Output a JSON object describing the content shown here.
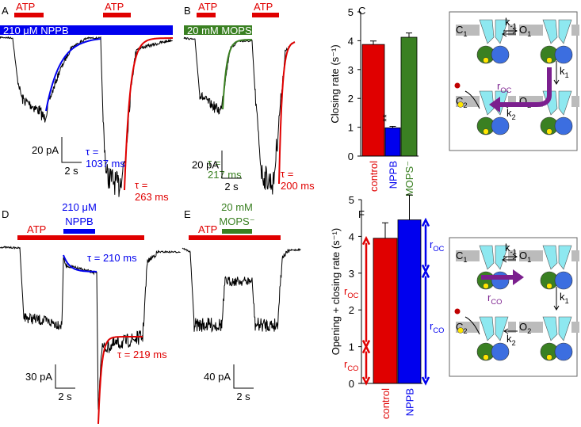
{
  "panel_labels": [
    "A",
    "B",
    "C",
    "D",
    "E",
    "F"
  ],
  "trace_panels": [
    {
      "solutions": [
        {
          "label": "ATP",
          "color": "#e00000"
        },
        {
          "label": "ATP",
          "color": "#e00000"
        },
        {
          "label": "210 μM NPPB",
          "color": "#0000ee"
        }
      ],
      "tau_labels": [
        {
          "lines": [
            "τ =",
            "1037 ms"
          ],
          "color": "#0000ee"
        },
        {
          "lines": [
            "τ =",
            "263 ms"
          ],
          "color": "#e00000"
        }
      ],
      "scale": [
        "20 pA",
        "2 s"
      ]
    },
    {
      "solutions": [
        {
          "label": "ATP",
          "color": "#e00000"
        },
        {
          "label": "ATP",
          "color": "#e00000"
        },
        {
          "label": "20 mM MOPS⁻",
          "color": "#3a8022"
        }
      ],
      "tau_labels": [
        {
          "lines": [
            "τ =",
            "217 ms"
          ],
          "color": "#3a8022"
        },
        {
          "lines": [
            "τ =",
            "200 ms"
          ],
          "color": "#e00000"
        }
      ],
      "scale": [
        "20 pA",
        "2 s"
      ]
    },
    {
      "solutions": [
        {
          "label": "ATP",
          "color": "#e00000"
        },
        {
          "lines": [
            "210 μM",
            "NPPB"
          ],
          "color": "#0000ee"
        }
      ],
      "tau_labels": [
        {
          "lines": [
            "τ = 210 ms"
          ],
          "color": "#0000ee"
        },
        {
          "lines": [
            "τ = 219 ms"
          ],
          "color": "#e00000"
        }
      ],
      "scale": [
        "30 pA",
        "2 s"
      ]
    },
    {
      "solutions": [
        {
          "label": "ATP",
          "color": "#e00000"
        },
        {
          "lines": [
            "20 mM",
            "MOPS⁻"
          ],
          "color": "#3a8022"
        }
      ],
      "tau_labels": [],
      "scale": [
        "40 pA",
        "2 s"
      ]
    }
  ],
  "chart_data": [
    {
      "type": "bar",
      "ylabel": "Closing rate (s⁻¹)",
      "categories": [
        "control",
        "NPPB",
        "MOPS⁻"
      ],
      "values": [
        3.87,
        0.98,
        4.12
      ],
      "errors": [
        0.12,
        0.05,
        0.15
      ],
      "colors": [
        "#e00000",
        "#0000ee",
        "#3a8022"
      ],
      "ylim": [
        0,
        5
      ],
      "yticks": [
        0,
        1,
        2,
        3,
        4,
        5
      ],
      "annotations": [
        "**"
      ]
    },
    {
      "type": "bar",
      "ylabel": "Opening + closing rate (s⁻¹)",
      "categories": [
        "control",
        "NPPB"
      ],
      "values": [
        3.95,
        4.45
      ],
      "errors": [
        0.42,
        0.68
      ],
      "colors": [
        "#e00000",
        "#0000ee"
      ],
      "ylim": [
        0,
        5
      ],
      "yticks": [
        0,
        1,
        2,
        3,
        4,
        5
      ],
      "arrow_labels": [
        {
          "main": "r",
          "sub": "OC"
        },
        {
          "main": "r",
          "sub": "CO"
        },
        {
          "main": "r",
          "sub": "OC"
        },
        {
          "main": "r",
          "sub": "CO"
        }
      ]
    }
  ],
  "schemes": [
    {
      "states": [
        {
          "main": "C",
          "sub": "1"
        },
        {
          "main": "O",
          "sub": "1"
        },
        {
          "main": "C",
          "sub": "2"
        },
        {
          "main": "O",
          "sub": "2"
        }
      ],
      "rates": [
        {
          "main": "k",
          "sub": "-1"
        },
        {
          "main": "k",
          "sub": "1"
        },
        {
          "main": "k",
          "sub": "2"
        }
      ],
      "highlight": {
        "main": "r",
        "sub": "OC"
      }
    },
    {
      "states": [
        {
          "main": "C",
          "sub": "1"
        },
        {
          "main": "O",
          "sub": "1"
        },
        {
          "main": "C",
          "sub": "2"
        },
        {
          "main": "O",
          "sub": "2"
        }
      ],
      "rates": [
        {
          "main": "k",
          "sub": "-1"
        },
        {
          "main": "k",
          "sub": "1"
        },
        {
          "main": "k",
          "sub": "2"
        }
      ],
      "highlight": {
        "main": "r",
        "sub": "CO"
      }
    }
  ]
}
